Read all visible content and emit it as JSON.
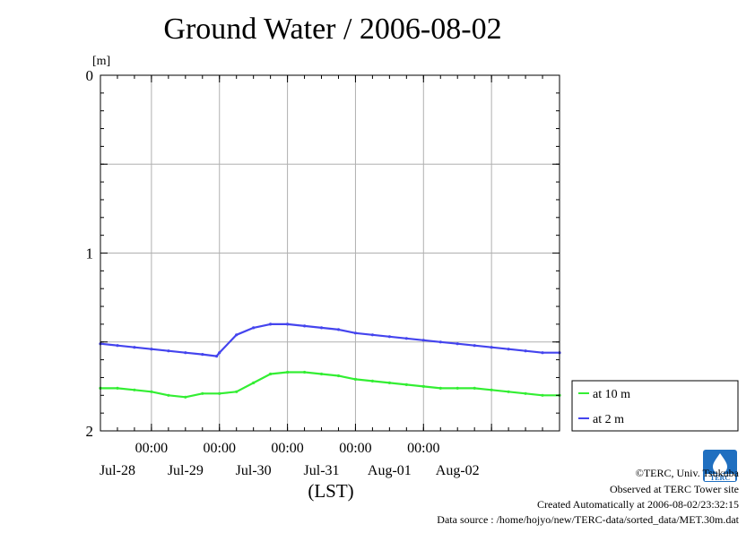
{
  "title": "Ground Water / 2006-08-02",
  "chart_data": {
    "type": "line",
    "ylabel": "[m]",
    "xlabel": "(LST)",
    "ylim": [
      0,
      2
    ],
    "y_inverted": true,
    "y_ticks": [
      "0",
      "1",
      "2"
    ],
    "x_range": [
      "2006-07-27T06:00",
      "2006-08-03T00:00"
    ],
    "x_time_ticks": [
      "00:00",
      "00:00",
      "00:00",
      "00:00",
      "00:00"
    ],
    "x_date_labels": [
      "Jul-28",
      "Jul-29",
      "Jul-30",
      "Jul-31",
      "Aug-01",
      "Aug-02"
    ],
    "grid": true,
    "legend_position": "right",
    "series": [
      {
        "name": "at 10 m",
        "color": "#33ee33",
        "points": [
          [
            "2006-07-27T06:00",
            1.76
          ],
          [
            "2006-07-27T12:00",
            1.76
          ],
          [
            "2006-07-27T18:00",
            1.77
          ],
          [
            "2006-07-28T00:00",
            1.78
          ],
          [
            "2006-07-28T06:00",
            1.8
          ],
          [
            "2006-07-28T12:00",
            1.81
          ],
          [
            "2006-07-28T18:00",
            1.79
          ],
          [
            "2006-07-29T00:00",
            1.79
          ],
          [
            "2006-07-29T06:00",
            1.78
          ],
          [
            "2006-07-29T12:00",
            1.73
          ],
          [
            "2006-07-29T18:00",
            1.68
          ],
          [
            "2006-07-30T00:00",
            1.67
          ],
          [
            "2006-07-30T06:00",
            1.67
          ],
          [
            "2006-07-30T12:00",
            1.68
          ],
          [
            "2006-07-30T18:00",
            1.69
          ],
          [
            "2006-07-31T00:00",
            1.71
          ],
          [
            "2006-07-31T06:00",
            1.72
          ],
          [
            "2006-07-31T12:00",
            1.73
          ],
          [
            "2006-07-31T18:00",
            1.74
          ],
          [
            "2006-08-01T00:00",
            1.75
          ],
          [
            "2006-08-01T06:00",
            1.76
          ],
          [
            "2006-08-01T12:00",
            1.76
          ],
          [
            "2006-08-01T18:00",
            1.76
          ],
          [
            "2006-08-02T00:00",
            1.77
          ],
          [
            "2006-08-02T06:00",
            1.78
          ],
          [
            "2006-08-02T12:00",
            1.79
          ],
          [
            "2006-08-02T18:00",
            1.8
          ],
          [
            "2006-08-03T00:00",
            1.8
          ]
        ]
      },
      {
        "name": "at 2 m",
        "color": "#4444ee",
        "points": [
          [
            "2006-07-27T06:00",
            1.51
          ],
          [
            "2006-07-27T12:00",
            1.52
          ],
          [
            "2006-07-27T18:00",
            1.53
          ],
          [
            "2006-07-28T00:00",
            1.54
          ],
          [
            "2006-07-28T06:00",
            1.55
          ],
          [
            "2006-07-28T12:00",
            1.56
          ],
          [
            "2006-07-28T18:00",
            1.57
          ],
          [
            "2006-07-28T23:00",
            1.58
          ],
          [
            "2006-07-29T00:00",
            1.56
          ],
          [
            "2006-07-29T06:00",
            1.46
          ],
          [
            "2006-07-29T12:00",
            1.42
          ],
          [
            "2006-07-29T18:00",
            1.4
          ],
          [
            "2006-07-30T00:00",
            1.4
          ],
          [
            "2006-07-30T06:00",
            1.41
          ],
          [
            "2006-07-30T12:00",
            1.42
          ],
          [
            "2006-07-30T18:00",
            1.43
          ],
          [
            "2006-07-31T00:00",
            1.45
          ],
          [
            "2006-07-31T06:00",
            1.46
          ],
          [
            "2006-07-31T12:00",
            1.47
          ],
          [
            "2006-07-31T18:00",
            1.48
          ],
          [
            "2006-08-01T00:00",
            1.49
          ],
          [
            "2006-08-01T06:00",
            1.5
          ],
          [
            "2006-08-01T12:00",
            1.51
          ],
          [
            "2006-08-01T18:00",
            1.52
          ],
          [
            "2006-08-02T00:00",
            1.53
          ],
          [
            "2006-08-02T06:00",
            1.54
          ],
          [
            "2006-08-02T12:00",
            1.55
          ],
          [
            "2006-08-02T18:00",
            1.56
          ],
          [
            "2006-08-03T00:00",
            1.56
          ]
        ]
      }
    ]
  },
  "credits": {
    "copyright": "©TERC, Univ. Tsukuba",
    "observed": "Observed at TERC Tower site",
    "created": "Created Automatically at 2006-08-02/23:32:15",
    "source": "Data source : /home/hojyo/new/TERC-data/sorted_data/MET.30m.dat",
    "logo_text": "TERC"
  }
}
